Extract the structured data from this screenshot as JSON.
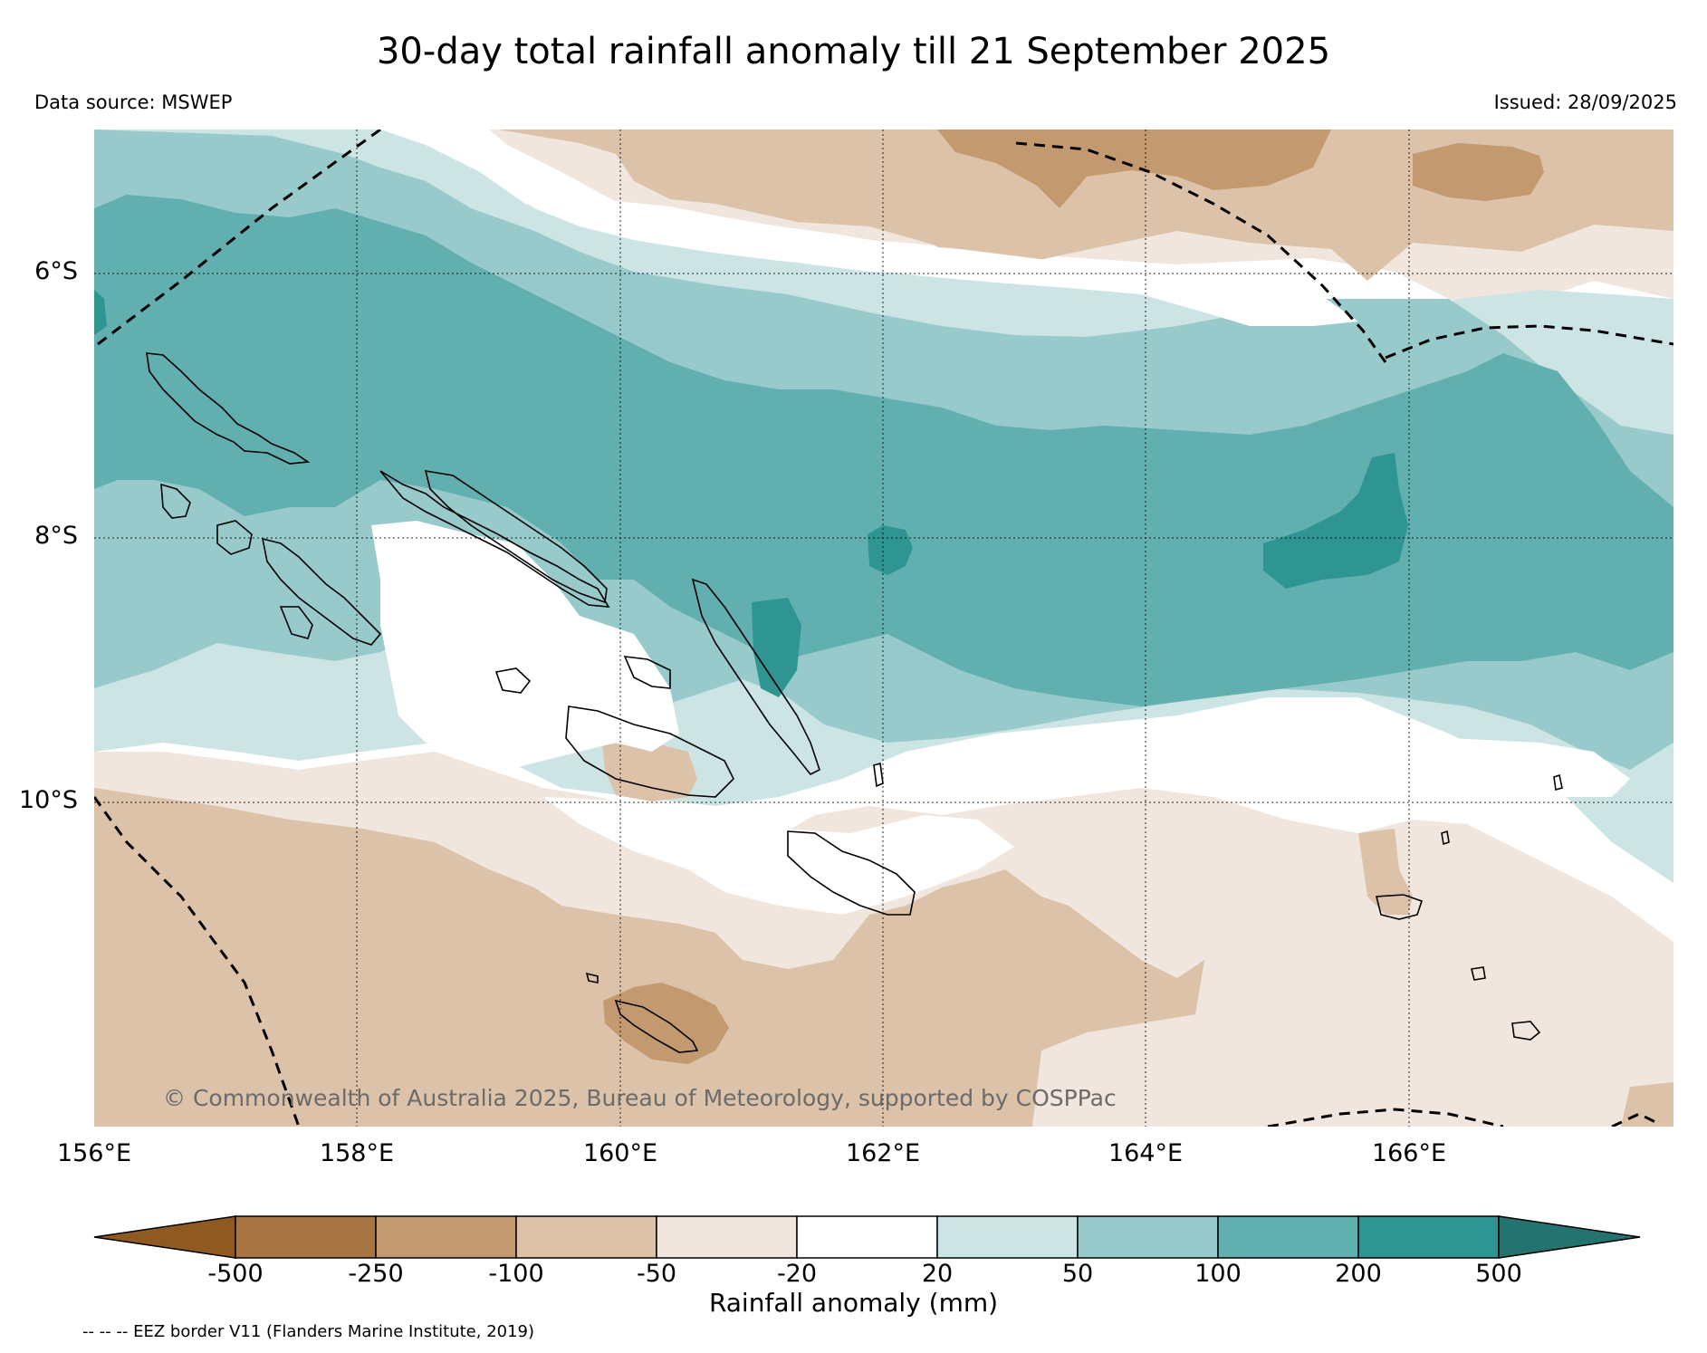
{
  "title": "30-day total rainfall anomaly till 21 September 2025",
  "data_source": "Data source: MSWEP",
  "issued": "Issued: 28/09/2025",
  "copyright": "© Commonwealth of Australia 2025, Bureau of Meteorology, supported by COSPPac",
  "latitude_labels": [
    "6°S",
    "8°S",
    "10°S"
  ],
  "longitude_labels": [
    "156°E",
    "158°E",
    "160°E",
    "162°E",
    "164°E",
    "166°E"
  ],
  "colorbar": {
    "label": "Rainfall anomaly (mm)",
    "ticks": [
      "-500",
      "-250",
      "-100",
      "-50",
      "-20",
      "20",
      "50",
      "100",
      "200",
      "500"
    ],
    "colors": [
      "#8f5a22",
      "#a87542",
      "#c39a70",
      "#dbc2a8",
      "#f0e6dd",
      "#ffffff",
      "#cce5e4",
      "#98cacb",
      "#62afb0",
      "#2f9593",
      "#24736f"
    ]
  },
  "footnote": "-- -- -- EEZ border V11 (Flanders Marine Institute, 2019)",
  "colors": {
    "brown_strong": "#c39a70",
    "brown_mid": "#dbc2a8",
    "brown_light": "#f0e6dd",
    "teal_light": "#cce5e4",
    "teal_mid": "#98cacb",
    "teal_strong": "#62afb0",
    "teal_dark": "#2f9593"
  }
}
